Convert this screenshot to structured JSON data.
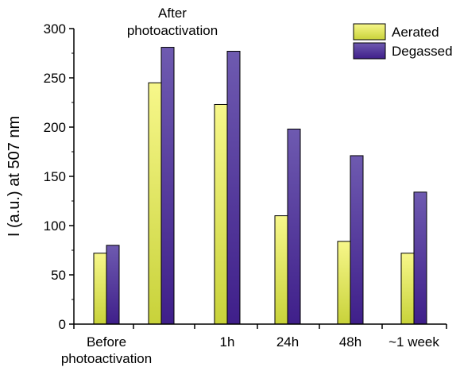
{
  "chart_data": {
    "type": "bar",
    "title": "",
    "xlabel": "",
    "ylabel": "I (a.u.) at 507 nm",
    "ylim": [
      0,
      300
    ],
    "yticks": [
      0,
      50,
      100,
      150,
      200,
      250,
      300
    ],
    "categories": [
      "Before photoactivation",
      "",
      "1h",
      "24h",
      "48h",
      "~1 week"
    ],
    "category_lines": [
      [
        "Before",
        "photoactivation"
      ],
      [
        ""
      ],
      [
        "1h"
      ],
      [
        "24h"
      ],
      [
        "48h"
      ],
      [
        "~1 week"
      ]
    ],
    "annotations": [
      {
        "lines": [
          "After",
          "photoactivation"
        ],
        "category_index": 1
      }
    ],
    "series": [
      {
        "name": "Aerated",
        "values": [
          72,
          245,
          223,
          110,
          84,
          72
        ],
        "color_top": "#f7f78a",
        "color_bottom": "#c8d23a",
        "stroke": "#000000"
      },
      {
        "name": "Degassed",
        "values": [
          80,
          281,
          277,
          198,
          171,
          134
        ],
        "color_top": "#6e5ab0",
        "color_bottom": "#3f1f8a",
        "stroke": "#000000"
      }
    ],
    "legend_position": "top-right",
    "grid": false
  }
}
